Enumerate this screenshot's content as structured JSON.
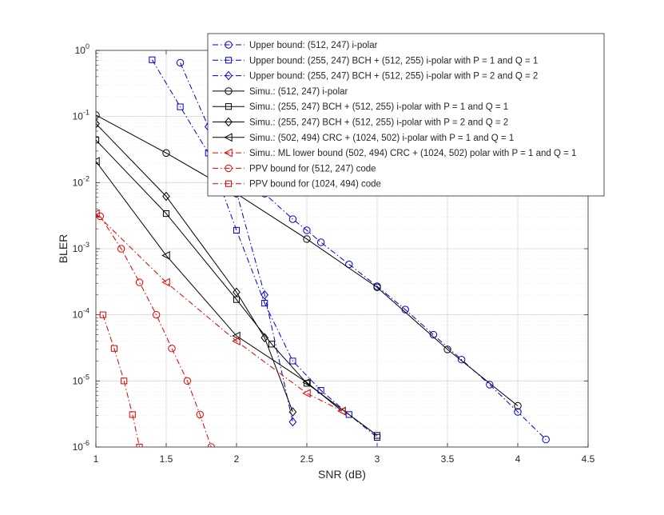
{
  "chart_data": {
    "type": "line",
    "title": "",
    "xlabel": "SNR (dB)",
    "ylabel": "BLER",
    "xlim": [
      1,
      4.5
    ],
    "ylim": [
      1e-06,
      1
    ],
    "yscale": "log",
    "grid": "major and minor",
    "legend_position": "top-right",
    "x_ticks": [
      "1",
      "1.5",
      "2",
      "2.5",
      "3",
      "3.5",
      "4",
      "4.5"
    ],
    "y_ticks": [
      {
        "base": "10",
        "exp": "0"
      },
      {
        "base": "10",
        "exp": "-1"
      },
      {
        "base": "10",
        "exp": "-2"
      },
      {
        "base": "10",
        "exp": "-3"
      },
      {
        "base": "10",
        "exp": "-4"
      },
      {
        "base": "10",
        "exp": "-5"
      },
      {
        "base": "10",
        "exp": "-6"
      }
    ],
    "series": [
      {
        "name": "Upper bound: (512, 247) i-polar",
        "color": "#0000cc",
        "dash": "dashdot",
        "marker": "circle",
        "x": [
          1.6,
          2.0,
          2.2,
          2.4,
          2.5,
          2.6,
          2.8,
          3.0,
          3.2,
          3.4,
          3.6,
          3.8,
          4.0,
          4.2
        ],
        "y": [
          0.65,
          0.0075,
          0.0068,
          0.0028,
          0.0019,
          0.00125,
          0.00058,
          0.00027,
          0.00012,
          5e-05,
          2.1e-05,
          8.8e-06,
          3.4e-06,
          1.3e-06
        ]
      },
      {
        "name": "Upper bound: (255, 247) BCH + (512, 255) i-polar with P = 1 and Q = 1",
        "color": "#0000cc",
        "dash": "dashdot",
        "marker": "square",
        "x": [
          1.4,
          1.6,
          1.8,
          2.0,
          2.2,
          2.4,
          2.6,
          2.8,
          3.0
        ],
        "y": [
          0.72,
          0.14,
          0.028,
          0.0019,
          0.00015,
          2e-05,
          7.2e-06,
          3.1e-06,
          1.4e-06
        ]
      },
      {
        "name": "Upper bound: (255, 247) BCH + (512, 255) i-polar with P = 2 and Q = 2",
        "color": "#0000cc",
        "dash": "dashdot",
        "marker": "diamond",
        "x": [
          1.8,
          2.0,
          2.2,
          2.4
        ],
        "y": [
          0.07,
          0.0072,
          0.0002,
          2.4e-06
        ]
      },
      {
        "name": "Simu.: (512, 247) i-polar",
        "color": "#000000",
        "dash": "solid",
        "marker": "circle",
        "x": [
          1.0,
          1.5,
          2.0,
          2.5,
          3.0,
          3.5,
          4.0
        ],
        "y": [
          0.105,
          0.028,
          0.0068,
          0.0014,
          0.00026,
          3e-05,
          4.2e-06
        ]
      },
      {
        "name": "Simu.: (255, 247) BCH + (512, 255) i-polar with P = 1 and Q = 1",
        "color": "#000000",
        "dash": "solid",
        "marker": "square",
        "x": [
          1.0,
          1.5,
          2.0,
          2.25,
          2.5,
          3.0
        ],
        "y": [
          0.044,
          0.0034,
          0.00017,
          3.6e-05,
          9.2e-06,
          1.5e-06
        ]
      },
      {
        "name": "Simu.: (255, 247) BCH + (512, 255) i-polar with P = 2 and Q = 2",
        "color": "#000000",
        "dash": "solid",
        "marker": "diamond",
        "x": [
          1.0,
          1.5,
          2.0,
          2.2,
          2.4
        ],
        "y": [
          0.078,
          0.0062,
          0.00022,
          4.5e-05,
          3.4e-06
        ]
      },
      {
        "name": "Simu.: (502, 494) CRC + (1024, 502) i-polar with P = 1 and Q = 1",
        "color": "#000000",
        "dash": "solid",
        "marker": "triangle-left",
        "x": [
          1.0,
          1.5,
          2.0,
          2.5,
          2.75
        ],
        "y": [
          0.021,
          0.00079,
          4.8e-05,
          9.5e-06,
          3.5e-06
        ]
      },
      {
        "name": "Simu.: ML lower bound (502, 494) CRC + (1024, 502) polar with P = 1 and Q = 1",
        "color": "#dd0000",
        "dash": "dashdot",
        "marker": "triangle-left",
        "x": [
          1.0,
          1.5,
          2.0,
          2.5,
          2.75
        ],
        "y": [
          0.0034,
          0.00031,
          4e-05,
          6.5e-06,
          3.5e-06
        ]
      },
      {
        "name": "PPV bound for (512, 247) code",
        "color": "#dd0000",
        "dash": "dashdot",
        "marker": "circle",
        "x": [
          1.03,
          1.18,
          1.31,
          1.43,
          1.54,
          1.65,
          1.74,
          1.82
        ],
        "y": [
          0.0031,
          0.001,
          0.00031,
          0.0001,
          3.1e-05,
          1e-05,
          3.1e-06,
          1e-06
        ]
      },
      {
        "name": "PPV bound for (1024, 494) code",
        "color": "#dd0000",
        "dash": "dashdot",
        "marker": "square",
        "x": [
          1.05,
          1.13,
          1.2,
          1.26,
          1.31,
          1.35
        ],
        "y": [
          0.0001,
          3.1e-05,
          1e-05,
          3.1e-06,
          1e-06,
          3.5e-07
        ]
      }
    ]
  }
}
